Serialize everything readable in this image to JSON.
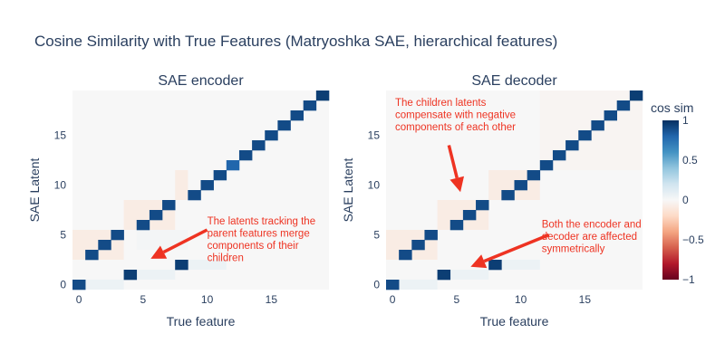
{
  "title": "Cosine Similarity with True Features (Matryoshka SAE, hierarchical features)",
  "colors": {
    "text": "#2a3f5f",
    "annotation": "#ee3322",
    "plot_background": "#f4f6f9",
    "colorscale_RdBu": [
      "#67001f",
      "#b2182b",
      "#d6604d",
      "#f4a582",
      "#fddbc7",
      "#f7f7f7",
      "#d1e5f0",
      "#92c5de",
      "#4393c3",
      "#2166ac",
      "#053061"
    ]
  },
  "chart_data": [
    {
      "type": "heatmap",
      "title": "SAE encoder",
      "xlabel": "True feature",
      "ylabel": "SAE Latent",
      "x_ticks": [
        0,
        5,
        10,
        15
      ],
      "y_ticks": [
        0,
        5,
        10,
        15
      ],
      "x_range": [
        0,
        19
      ],
      "y_range": [
        0,
        19
      ],
      "background_value": 0.0,
      "cells": [
        {
          "x": 0,
          "y": 0,
          "value": 0.9
        },
        {
          "x": 1,
          "y": 3,
          "value": 0.9
        },
        {
          "x": 2,
          "y": 4,
          "value": 0.9
        },
        {
          "x": 3,
          "y": 5,
          "value": 0.9
        },
        {
          "x": 4,
          "y": 1,
          "value": 0.95
        },
        {
          "x": 5,
          "y": 6,
          "value": 0.9
        },
        {
          "x": 6,
          "y": 7,
          "value": 0.9
        },
        {
          "x": 7,
          "y": 8,
          "value": 0.9
        },
        {
          "x": 8,
          "y": 2,
          "value": 0.95
        },
        {
          "x": 9,
          "y": 9,
          "value": 0.9
        },
        {
          "x": 10,
          "y": 10,
          "value": 0.9
        },
        {
          "x": 11,
          "y": 11,
          "value": 0.9
        },
        {
          "x": 12,
          "y": 12,
          "value": 0.8
        },
        {
          "x": 13,
          "y": 13,
          "value": 0.9
        },
        {
          "x": 14,
          "y": 14,
          "value": 0.9
        },
        {
          "x": 15,
          "y": 15,
          "value": 0.9
        },
        {
          "x": 16,
          "y": 16,
          "value": 0.9
        },
        {
          "x": 17,
          "y": 17,
          "value": 0.9
        },
        {
          "x": 18,
          "y": 18,
          "value": 0.9
        },
        {
          "x": 19,
          "y": 19,
          "value": 0.95
        }
      ],
      "regions": [
        {
          "x0": 0,
          "x1": 3,
          "y0": 0,
          "y1": 0,
          "value": 0.06
        },
        {
          "x0": 4,
          "x1": 7,
          "y0": 1,
          "y1": 1,
          "value": 0.06
        },
        {
          "x0": 8,
          "x1": 11,
          "y0": 2,
          "y1": 2,
          "value": 0.06
        },
        {
          "x0": 0,
          "x1": 3,
          "y0": 3,
          "y1": 5,
          "value": -0.08
        },
        {
          "x0": 4,
          "x1": 7,
          "y0": 6,
          "y1": 8,
          "value": -0.08
        },
        {
          "x0": 8,
          "x1": 8,
          "y0": 9,
          "y1": 11,
          "value": -0.08
        },
        {
          "x0": 5,
          "x1": 8,
          "y0": 4,
          "y1": 5,
          "value": 0.02
        }
      ],
      "annotations": [
        {
          "lines": [
            "The latents tracking the",
            "parent features merge",
            "components of their",
            "children"
          ],
          "arrow_from": {
            "x": 10,
            "y": 5.5
          },
          "arrow_to": {
            "x": 5.6,
            "y": 2.6
          }
        }
      ]
    },
    {
      "type": "heatmap",
      "title": "SAE decoder",
      "xlabel": "True feature",
      "ylabel": "SAE Latent",
      "x_ticks": [
        0,
        5,
        10,
        15
      ],
      "y_ticks": [
        0,
        5,
        10,
        15
      ],
      "x_range": [
        0,
        19
      ],
      "y_range": [
        0,
        19
      ],
      "background_value": 0.0,
      "cells": [
        {
          "x": 0,
          "y": 0,
          "value": 0.9
        },
        {
          "x": 1,
          "y": 3,
          "value": 0.9
        },
        {
          "x": 2,
          "y": 4,
          "value": 0.9
        },
        {
          "x": 3,
          "y": 5,
          "value": 0.9
        },
        {
          "x": 4,
          "y": 1,
          "value": 0.95
        },
        {
          "x": 5,
          "y": 6,
          "value": 0.9
        },
        {
          "x": 6,
          "y": 7,
          "value": 0.9
        },
        {
          "x": 7,
          "y": 8,
          "value": 0.9
        },
        {
          "x": 8,
          "y": 2,
          "value": 0.95
        },
        {
          "x": 9,
          "y": 9,
          "value": 0.9
        },
        {
          "x": 10,
          "y": 10,
          "value": 0.9
        },
        {
          "x": 11,
          "y": 11,
          "value": 0.9
        },
        {
          "x": 12,
          "y": 12,
          "value": 0.9
        },
        {
          "x": 13,
          "y": 13,
          "value": 0.9
        },
        {
          "x": 14,
          "y": 14,
          "value": 0.9
        },
        {
          "x": 15,
          "y": 15,
          "value": 0.9
        },
        {
          "x": 16,
          "y": 16,
          "value": 0.9
        },
        {
          "x": 17,
          "y": 17,
          "value": 0.9
        },
        {
          "x": 18,
          "y": 18,
          "value": 0.9
        },
        {
          "x": 19,
          "y": 19,
          "value": 0.95
        }
      ],
      "regions": [
        {
          "x0": 0,
          "x1": 3,
          "y0": 0,
          "y1": 0,
          "value": 0.06
        },
        {
          "x0": 4,
          "x1": 7,
          "y0": 1,
          "y1": 1,
          "value": 0.06
        },
        {
          "x0": 8,
          "x1": 11,
          "y0": 2,
          "y1": 2,
          "value": 0.06
        },
        {
          "x0": 0,
          "x1": 3,
          "y0": 3,
          "y1": 5,
          "value": -0.08
        },
        {
          "x0": 4,
          "x1": 7,
          "y0": 6,
          "y1": 8,
          "value": -0.08
        },
        {
          "x0": 8,
          "x1": 11,
          "y0": 9,
          "y1": 11,
          "value": -0.08
        },
        {
          "x0": 12,
          "x1": 19,
          "y0": 12,
          "y1": 19,
          "value": -0.02
        }
      ],
      "annotations": [
        {
          "lines": [
            "The children latents",
            "compensate with negative",
            "components of each other"
          ],
          "arrow_from": {
            "x": 4.4,
            "y": 14
          },
          "arrow_to": {
            "x": 5.3,
            "y": 9.3
          }
        },
        {
          "lines": [
            "Both the encoder and",
            "decoder are affected",
            "symmetrically"
          ],
          "arrow_from": {
            "x": 12.2,
            "y": 5
          },
          "arrow_to": {
            "x": 6.1,
            "y": 1.8
          }
        }
      ]
    }
  ],
  "colorbar": {
    "title": "cos sim",
    "range": [
      -1,
      1
    ],
    "ticks": [
      1,
      0.5,
      0,
      -0.5,
      -1
    ],
    "tick_labels": [
      "1",
      "0.5",
      "0",
      "−0.5",
      "−1"
    ]
  }
}
